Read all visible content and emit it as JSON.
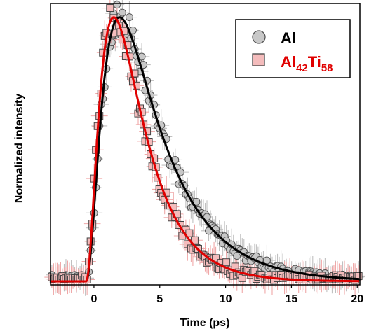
{
  "chart_data": {
    "type": "scatter",
    "xlabel": "Time (ps)",
    "ylabel": "Normalized intensity",
    "xlim": [
      -3.3,
      20.2
    ],
    "ylim": [
      0,
      1.0
    ],
    "xticks": [
      "0",
      "5",
      "10",
      "15",
      "20"
    ],
    "grid": false,
    "legend_position": "top-right",
    "series": [
      {
        "key": "al",
        "name": "Al",
        "marker": "circle",
        "marker_fill": "#c8c8c8",
        "marker_edge": "#555555",
        "errorbar_color": "#c0c0c0",
        "fit_color": "#000000",
        "model": {
          "t0": -0.6,
          "rise_tau": 1.3,
          "decay_tau": 3.6,
          "y_scale": 0.955,
          "noise": 0.04,
          "seed": 7
        },
        "n_points": 175
      },
      {
        "key": "alti",
        "name": "Al42Ti58",
        "name_parts": {
          "base": "Al",
          "sub1": "42",
          "mid": "Ti",
          "sub2": "58"
        },
        "marker": "square",
        "marker_fill": "#f4bcbc",
        "marker_edge": "#444444",
        "errorbar_color": "#f0a8a8",
        "fit_color": "#e00000",
        "model": {
          "t0": -0.6,
          "rise_tau": 1.25,
          "decay_tau": 2.5,
          "y_scale": 0.955,
          "noise": 0.045,
          "seed": 19
        },
        "n_points": 175
      }
    ]
  },
  "colors": {
    "legend_al_text": "#000000",
    "legend_alti_text": "#e00000"
  }
}
